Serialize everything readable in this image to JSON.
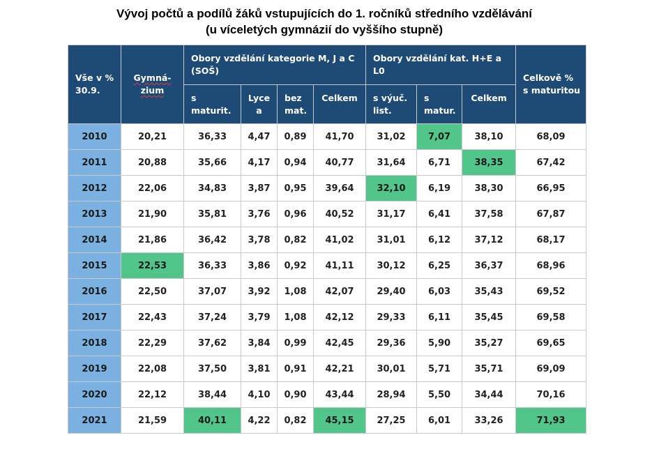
{
  "title": {
    "line1": "Vývoj počtů a podílů žáků vstupujících do 1. ročníků středního vzdělávání",
    "line2": "(u víceletých gymnázií do vyššího stupně)"
  },
  "colors": {
    "header_bg": "#1e4a76",
    "year_bg": "#7ab1e0",
    "highlight": "#52c68a"
  },
  "headers": {
    "row1": {
      "corner_line1": "Vše v %",
      "corner_line2": "30.9.",
      "gymnazium_line1": "Gymná-",
      "gymnazium_line2": "zium",
      "group_mjc_line1": "Obory vzdělání kategorie M, J a C",
      "group_mjc_line2": "(SOŠ)",
      "group_hel": "Obory vzdělání kat. H+E a L0",
      "total_line1": "Celkově %",
      "total_line2": "s maturitou"
    },
    "row2": {
      "s_maturit_line1": "s",
      "s_maturit_line2": "maturit.",
      "lycea_line1": "Lyce",
      "lycea_line2": "a",
      "bez_mat_line1": "bez",
      "bez_mat_line2": "mat.",
      "celkem_mjc": "Celkem",
      "s_vyuc_line1": "s výuč.",
      "s_vyuc_line2": "list.",
      "s_matur_line1": "s",
      "s_matur_line2": "matur.",
      "celkem_hel": "Celkem"
    }
  },
  "chart_data": {
    "type": "table",
    "title": "Vývoj počtů a podílů žáků vstupujících do 1. ročníků středního vzdělávání (u víceletých gymnázií do vyššího stupně)",
    "columns": [
      "Vše v % 30.9.",
      "Gymná-zium",
      "s maturit.",
      "Lycea",
      "bez mat.",
      "Celkem",
      "s výuč. list.",
      "s matur.",
      "Celkem",
      "Celkově % s maturitou"
    ],
    "column_groups": [
      {
        "label": "Obory vzdělání kategorie M, J a C (SOŠ)",
        "columns": [
          "s maturit.",
          "Lycea",
          "bez mat.",
          "Celkem"
        ]
      },
      {
        "label": "Obory vzdělání kat. H+E a L0",
        "columns": [
          "s výuč. list.",
          "s matur.",
          "Celkem"
        ]
      }
    ],
    "rows": [
      {
        "year": "2010",
        "values": [
          "20,21",
          "36,33",
          "4,47",
          "0,89",
          "41,70",
          "31,02",
          "7,07",
          "38,10",
          "68,09"
        ],
        "highlight": [
          6
        ]
      },
      {
        "year": "2011",
        "values": [
          "20,88",
          "35,66",
          "4,17",
          "0,94",
          "40,77",
          "31,64",
          "6,71",
          "38,35",
          "67,42"
        ],
        "highlight": [
          7
        ]
      },
      {
        "year": "2012",
        "values": [
          "22,06",
          "34,83",
          "3,87",
          "0,95",
          "39,64",
          "32,10",
          "6,19",
          "38,30",
          "66,95"
        ],
        "highlight": [
          5
        ]
      },
      {
        "year": "2013",
        "values": [
          "21,90",
          "35,81",
          "3,76",
          "0,96",
          "40,52",
          "31,17",
          "6,41",
          "37,58",
          "67,87"
        ],
        "highlight": []
      },
      {
        "year": "2014",
        "values": [
          "21,86",
          "36,42",
          "3,78",
          "0,82",
          "41,02",
          "31,01",
          "6,12",
          "37,12",
          "68,17"
        ],
        "highlight": []
      },
      {
        "year": "2015",
        "values": [
          "22,53",
          "36,33",
          "3,86",
          "0,92",
          "41,11",
          "30,12",
          "6,25",
          "36,37",
          "68,96"
        ],
        "highlight": [
          0
        ]
      },
      {
        "year": "2016",
        "values": [
          "22,50",
          "37,07",
          "3,92",
          "1,08",
          "42,07",
          "29,40",
          "6,03",
          "35,43",
          "69,52"
        ],
        "highlight": []
      },
      {
        "year": "2017",
        "values": [
          "22,43",
          "37,24",
          "3,79",
          "1,08",
          "42,12",
          "29,33",
          "6,11",
          "35,45",
          "69,58"
        ],
        "highlight": []
      },
      {
        "year": "2018",
        "values": [
          "22,29",
          "37,62",
          "3,84",
          "0,99",
          "42,45",
          "29,36",
          "5,90",
          "35,27",
          "69,65"
        ],
        "highlight": []
      },
      {
        "year": "2019",
        "values": [
          "22,08",
          "37,50",
          "3,81",
          "0,91",
          "42,21",
          "30,01",
          "5,71",
          "35,71",
          "69,09"
        ],
        "highlight": []
      },
      {
        "year": "2020",
        "values": [
          "22,12",
          "38,44",
          "4,10",
          "0,90",
          "43,44",
          "28,94",
          "5,50",
          "34,44",
          "70,16"
        ],
        "highlight": []
      },
      {
        "year": "2021",
        "values": [
          "21,59",
          "40,11",
          "4,22",
          "0,82",
          "45,15",
          "27,25",
          "6,01",
          "33,26",
          "71,93"
        ],
        "highlight": [
          1,
          4,
          8
        ]
      }
    ]
  }
}
